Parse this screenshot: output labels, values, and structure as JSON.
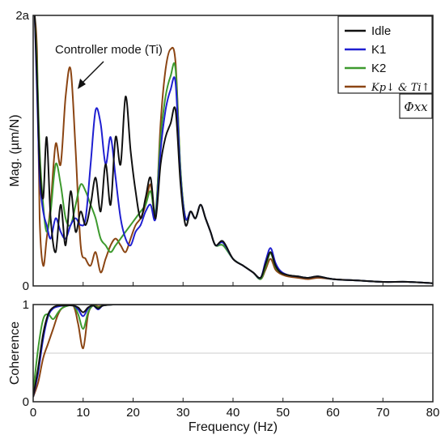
{
  "chart_data": [
    {
      "type": "line",
      "xlabel": "",
      "ylabel": "Mag. (µm/N)",
      "xlim": [
        0,
        80
      ],
      "ylim": [
        0,
        2
      ],
      "y_tick_labels": [
        "0",
        "2a"
      ],
      "annotation": "Controller mode (Ti)",
      "corner_label": "Φxx",
      "legend_position": "top-right",
      "legend": [
        "Idle",
        "K1",
        "K2",
        "Kp↓ & Ti↑"
      ],
      "colors": {
        "Idle": "#111111",
        "K1": "#1f1fd1",
        "K2": "#3d9a2e",
        "Kp↓ & Ti↑": "#8b4513"
      },
      "series": [
        {
          "name": "Idle",
          "x": [
            0.3,
            0.8,
            1.3,
            2,
            2.7,
            3.5,
            4.5,
            5.5,
            6.5,
            7.5,
            8.5,
            9.5,
            10.5,
            11.5,
            12.5,
            13.5,
            14.5,
            15.5,
            16.5,
            17.5,
            18.5,
            19.5,
            20.5,
            21.5,
            22.5,
            23.5,
            24.5,
            25.5,
            26.5,
            27.5,
            28.5,
            29.5,
            30.5,
            31.5,
            32.5,
            33.5,
            34.5,
            35.5,
            36.5,
            38,
            40,
            42,
            44,
            45.5,
            46.5,
            47.5,
            48.5,
            49.5,
            51,
            53,
            55,
            57,
            60,
            65,
            70,
            75,
            80
          ],
          "y": [
            2.0,
            1.5,
            0.9,
            0.65,
            1.1,
            0.5,
            0.25,
            0.6,
            0.3,
            0.7,
            0.4,
            0.55,
            0.45,
            0.6,
            0.8,
            0.55,
            0.9,
            0.6,
            1.1,
            0.9,
            1.4,
            1.0,
            0.7,
            0.5,
            0.65,
            0.8,
            0.5,
            0.9,
            1.1,
            1.2,
            1.3,
            0.75,
            0.45,
            0.55,
            0.5,
            0.6,
            0.5,
            0.4,
            0.3,
            0.33,
            0.2,
            0.15,
            0.1,
            0.06,
            0.16,
            0.25,
            0.15,
            0.1,
            0.08,
            0.07,
            0.06,
            0.07,
            0.05,
            0.04,
            0.03,
            0.03,
            0.02
          ]
        },
        {
          "name": "K1",
          "x": [
            0.3,
            0.8,
            1.3,
            2,
            2.7,
            3.5,
            4.5,
            5.5,
            6.5,
            7.5,
            8.5,
            9.5,
            10.5,
            11.5,
            12.5,
            13.5,
            14.5,
            15.5,
            16.5,
            17.5,
            18.5,
            19.5,
            20.5,
            21.5,
            22.5,
            23.5,
            24.5,
            25.5,
            26.5,
            27.5,
            28.5,
            29.5,
            30.5,
            31.5,
            32.5,
            33.5,
            34.5,
            35.5,
            36.5,
            38,
            40,
            42,
            44,
            45.5,
            46.5,
            47.5,
            48.5,
            49.5,
            51,
            53,
            55,
            57,
            60,
            65,
            70,
            75,
            80
          ],
          "y": [
            2.0,
            1.4,
            0.8,
            0.55,
            0.45,
            0.35,
            0.5,
            0.4,
            0.35,
            0.45,
            0.5,
            0.45,
            0.5,
            0.9,
            1.3,
            1.2,
            0.9,
            1.1,
            0.8,
            0.5,
            0.35,
            0.3,
            0.4,
            0.45,
            0.55,
            0.6,
            0.5,
            1.0,
            1.3,
            1.45,
            1.5,
            0.8,
            0.5,
            0.55,
            0.5,
            0.6,
            0.5,
            0.4,
            0.3,
            0.32,
            0.2,
            0.15,
            0.1,
            0.06,
            0.18,
            0.28,
            0.17,
            0.11,
            0.08,
            0.07,
            0.06,
            0.07,
            0.05,
            0.04,
            0.03,
            0.03,
            0.02
          ]
        },
        {
          "name": "K2",
          "x": [
            0.3,
            0.8,
            1.3,
            2,
            2.7,
            3.5,
            4.5,
            5.5,
            6.5,
            7.5,
            8.5,
            9.5,
            10.5,
            11.5,
            12.5,
            13.5,
            14.5,
            15.5,
            16.5,
            17.5,
            18.5,
            19.5,
            20.5,
            21.5,
            22.5,
            23.5,
            24.5,
            25.5,
            26.5,
            27.5,
            28.5,
            29.5,
            30.5,
            31.5,
            32.5,
            33.5,
            34.5,
            35.5,
            36.5,
            38,
            40,
            42,
            44,
            45.5,
            46.5,
            47.5,
            48.5,
            49.5,
            51,
            53,
            55,
            57,
            60,
            65,
            70,
            75,
            80
          ],
          "y": [
            2.0,
            1.6,
            1.0,
            0.6,
            0.4,
            0.55,
            0.9,
            0.75,
            0.5,
            0.45,
            0.6,
            0.75,
            0.7,
            0.6,
            0.5,
            0.35,
            0.3,
            0.25,
            0.3,
            0.35,
            0.4,
            0.45,
            0.5,
            0.55,
            0.6,
            0.7,
            0.55,
            1.1,
            1.4,
            1.55,
            1.6,
            0.85,
            0.5,
            0.55,
            0.5,
            0.6,
            0.5,
            0.4,
            0.3,
            0.3,
            0.2,
            0.15,
            0.1,
            0.05,
            0.14,
            0.24,
            0.14,
            0.1,
            0.08,
            0.07,
            0.06,
            0.07,
            0.05,
            0.04,
            0.03,
            0.03,
            0.02
          ]
        },
        {
          "name": "Kp↓ & Ti↑",
          "x": [
            0.3,
            0.8,
            1.3,
            2,
            2.7,
            3.5,
            4.5,
            5.5,
            6.5,
            7.5,
            8.5,
            9.5,
            10.5,
            11.5,
            12.5,
            13.5,
            14.5,
            15.5,
            16.5,
            17.5,
            18.5,
            19.5,
            20.5,
            21.5,
            22.5,
            23.5,
            24.5,
            25.5,
            26.5,
            27.5,
            28.5,
            29.5,
            30.5,
            31.5,
            32.5,
            33.5,
            34.5,
            35.5,
            36.5,
            38,
            40,
            42,
            44,
            45.5,
            46.5,
            47.5,
            48.5,
            49.5,
            51,
            53,
            55,
            57,
            60,
            65,
            70,
            75,
            80
          ],
          "y": [
            2.0,
            1.7,
            0.5,
            0.15,
            0.35,
            0.6,
            1.05,
            0.9,
            1.4,
            1.6,
            1.0,
            0.3,
            0.2,
            0.15,
            0.25,
            0.1,
            0.2,
            0.3,
            0.35,
            0.3,
            0.25,
            0.35,
            0.45,
            0.5,
            0.6,
            0.75,
            0.5,
            1.2,
            1.6,
            1.75,
            1.65,
            0.85,
            0.5,
            0.55,
            0.5,
            0.6,
            0.5,
            0.4,
            0.3,
            0.32,
            0.2,
            0.15,
            0.1,
            0.05,
            0.12,
            0.2,
            0.12,
            0.09,
            0.07,
            0.06,
            0.05,
            0.06,
            0.05,
            0.04,
            0.03,
            0.03,
            0.02
          ]
        }
      ]
    },
    {
      "type": "line",
      "xlabel": "Frequency (Hz)",
      "ylabel": "Coherence",
      "xlim": [
        0,
        80
      ],
      "ylim": [
        0,
        1
      ],
      "x_tick_labels": [
        "0",
        "10",
        "20",
        "30",
        "40",
        "50",
        "60",
        "70",
        "80"
      ],
      "y_tick_labels": [
        "0",
        "1"
      ],
      "series": [
        {
          "name": "Idle",
          "x": [
            0,
            1,
            2,
            3,
            4,
            5,
            6,
            8,
            9,
            10,
            11,
            12,
            13,
            14,
            16,
            18,
            20,
            25,
            30,
            80
          ],
          "y": [
            0.05,
            0.35,
            0.7,
            0.9,
            0.97,
            0.99,
            0.99,
            0.99,
            0.97,
            0.92,
            0.97,
            0.99,
            0.96,
            0.99,
            1.0,
            1.0,
            1.0,
            1.0,
            1.0,
            1.0
          ]
        },
        {
          "name": "K1",
          "x": [
            0,
            1,
            2,
            3,
            4,
            5,
            6,
            8,
            9,
            10,
            11,
            12,
            13,
            14,
            16,
            18,
            20,
            25,
            30,
            80
          ],
          "y": [
            0.05,
            0.3,
            0.65,
            0.88,
            0.96,
            0.98,
            0.99,
            0.99,
            0.95,
            0.88,
            0.96,
            0.99,
            0.95,
            0.99,
            1.0,
            1.0,
            1.0,
            1.0,
            1.0,
            1.0
          ]
        },
        {
          "name": "K2",
          "x": [
            0,
            1,
            2,
            3,
            4,
            5,
            6,
            8,
            9,
            10,
            11,
            12,
            13,
            14,
            16,
            18,
            20,
            25,
            30,
            80
          ],
          "y": [
            0.1,
            0.55,
            0.85,
            0.9,
            0.85,
            0.92,
            0.97,
            0.99,
            0.9,
            0.75,
            0.92,
            0.99,
            0.97,
            0.99,
            1.0,
            1.0,
            1.0,
            1.0,
            1.0,
            1.0
          ]
        },
        {
          "name": "Kp↓ & Ti↑",
          "x": [
            0,
            1,
            2,
            3,
            4,
            5,
            6,
            8,
            9,
            10,
            11,
            12,
            13,
            14,
            16,
            18,
            20,
            25,
            30,
            80
          ],
          "y": [
            0.05,
            0.2,
            0.45,
            0.6,
            0.75,
            0.9,
            0.97,
            0.99,
            0.8,
            0.55,
            0.9,
            0.99,
            0.98,
            0.99,
            1.0,
            1.0,
            1.0,
            1.0,
            1.0,
            1.0
          ]
        }
      ]
    }
  ]
}
